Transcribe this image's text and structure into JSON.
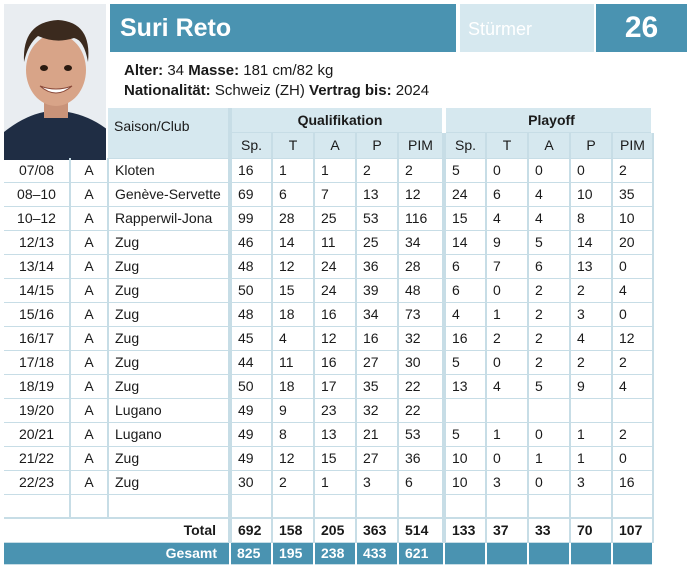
{
  "player": {
    "name": "Suri Reto",
    "position": "Stürmer",
    "number": "26",
    "age_label": "Alter:",
    "age": "34",
    "size_label": "Masse:",
    "size": "181 cm/82 kg",
    "nationality_label": "Nationalität:",
    "nationality": "Schweiz (ZH)",
    "contract_label": "Vertrag bis:",
    "contract": "2024"
  },
  "table": {
    "season_club_header": "Saison/Club",
    "qual_header": "Qualifikation",
    "playoff_header": "Playoff",
    "qual_cols": [
      "Sp.",
      "T",
      "A",
      "P",
      "PIM"
    ],
    "playoff_cols": [
      "Sp.",
      "T",
      "A",
      "P",
      "PIM"
    ],
    "rows": [
      {
        "season": "07/08",
        "lg": "A",
        "club": "Kloten",
        "q": [
          "16",
          "1",
          "1",
          "2",
          "2"
        ],
        "p": [
          "5",
          "0",
          "0",
          "0",
          "2"
        ]
      },
      {
        "season": "08–10",
        "lg": "A",
        "club": "Genève-Servette",
        "q": [
          "69",
          "6",
          "7",
          "13",
          "12"
        ],
        "p": [
          "24",
          "6",
          "4",
          "10",
          "35"
        ]
      },
      {
        "season": "10–12",
        "lg": "A",
        "club": "Rapperwil-Jona",
        "q": [
          "99",
          "28",
          "25",
          "53",
          "116"
        ],
        "p": [
          "15",
          "4",
          "4",
          "8",
          "10"
        ]
      },
      {
        "season": "12/13",
        "lg": "A",
        "club": "Zug",
        "q": [
          "46",
          "14",
          "11",
          "25",
          "34"
        ],
        "p": [
          "14",
          "9",
          "5",
          "14",
          "20"
        ]
      },
      {
        "season": "13/14",
        "lg": "A",
        "club": "Zug",
        "q": [
          "48",
          "12",
          "24",
          "36",
          "28"
        ],
        "p": [
          "6",
          "7",
          "6",
          "13",
          "0"
        ]
      },
      {
        "season": "14/15",
        "lg": "A",
        "club": "Zug",
        "q": [
          "50",
          "15",
          "24",
          "39",
          "48"
        ],
        "p": [
          "6",
          "0",
          "2",
          "2",
          "4"
        ]
      },
      {
        "season": "15/16",
        "lg": "A",
        "club": "Zug",
        "q": [
          "48",
          "18",
          "16",
          "34",
          "73"
        ],
        "p": [
          "4",
          "1",
          "2",
          "3",
          "0"
        ]
      },
      {
        "season": "16/17",
        "lg": "A",
        "club": "Zug",
        "q": [
          "45",
          "4",
          "12",
          "16",
          "32"
        ],
        "p": [
          "16",
          "2",
          "2",
          "4",
          "12"
        ]
      },
      {
        "season": "17/18",
        "lg": "A",
        "club": "Zug",
        "q": [
          "44",
          "11",
          "16",
          "27",
          "30"
        ],
        "p": [
          "5",
          "0",
          "2",
          "2",
          "2"
        ]
      },
      {
        "season": "18/19",
        "lg": "A",
        "club": "Zug",
        "q": [
          "50",
          "18",
          "17",
          "35",
          "22"
        ],
        "p": [
          "13",
          "4",
          "5",
          "9",
          "4"
        ]
      },
      {
        "season": "19/20",
        "lg": "A",
        "club": "Lugano",
        "q": [
          "49",
          "9",
          "23",
          "32",
          "22"
        ],
        "p": [
          "",
          "",
          "",
          "",
          ""
        ]
      },
      {
        "season": "20/21",
        "lg": "A",
        "club": "Lugano",
        "q": [
          "49",
          "8",
          "13",
          "21",
          "53"
        ],
        "p": [
          "5",
          "1",
          "0",
          "1",
          "2"
        ]
      },
      {
        "season": "21/22",
        "lg": "A",
        "club": "Zug",
        "q": [
          "49",
          "12",
          "15",
          "27",
          "36"
        ],
        "p": [
          "10",
          "0",
          "1",
          "1",
          "0"
        ]
      },
      {
        "season": "22/23",
        "lg": "A",
        "club": "Zug",
        "q": [
          "30",
          "2",
          "1",
          "3",
          "6"
        ],
        "p": [
          "10",
          "3",
          "0",
          "3",
          "16"
        ]
      },
      {
        "season": "",
        "lg": "",
        "club": "",
        "q": [
          "",
          "",
          "",
          "",
          ""
        ],
        "p": [
          "",
          "",
          "",
          "",
          ""
        ]
      }
    ],
    "total_label": "Total",
    "total_q": [
      "692",
      "158",
      "205",
      "363",
      "514"
    ],
    "total_p": [
      "133",
      "37",
      "33",
      "70",
      "107"
    ],
    "gesamt_label": "Gesamt",
    "gesamt_q": [
      "825",
      "195",
      "238",
      "433",
      "621"
    ]
  },
  "icons": {
    "portrait": "player-portrait"
  },
  "colors": {
    "accent": "#4a93b1",
    "light": "#d6e8ef",
    "line": "#c7dde6"
  }
}
